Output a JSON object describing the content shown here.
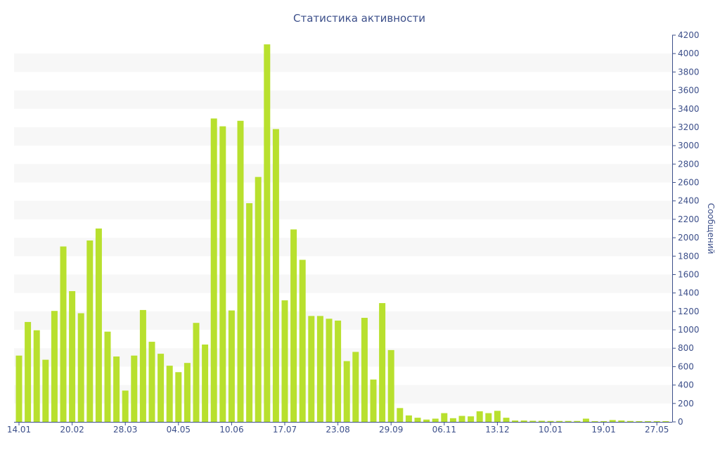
{
  "chart_data": {
    "type": "bar",
    "title": "Статистика активности",
    "xlabel": "",
    "ylabel": "Сообщений",
    "ylim": [
      0,
      4200
    ],
    "y_ticks": [
      0,
      200,
      400,
      600,
      800,
      1000,
      1200,
      1400,
      1600,
      1800,
      2000,
      2200,
      2400,
      2600,
      2800,
      3000,
      3200,
      3400,
      3600,
      3800,
      4000,
      4200
    ],
    "x_tick_labels": [
      {
        "index": 0,
        "label": "14.01"
      },
      {
        "index": 6,
        "label": "20.02"
      },
      {
        "index": 12,
        "label": "28.03"
      },
      {
        "index": 18,
        "label": "04.05"
      },
      {
        "index": 24,
        "label": "10.06"
      },
      {
        "index": 30,
        "label": "17.07"
      },
      {
        "index": 36,
        "label": "23.08"
      },
      {
        "index": 42,
        "label": "29.09"
      },
      {
        "index": 48,
        "label": "06.11"
      },
      {
        "index": 54,
        "label": "13.12"
      },
      {
        "index": 60,
        "label": "10.01"
      },
      {
        "index": 66,
        "label": "19.01"
      },
      {
        "index": 72,
        "label": "27.05"
      }
    ],
    "values": [
      720,
      1085,
      995,
      675,
      1205,
      1905,
      1420,
      1180,
      1970,
      2100,
      980,
      710,
      340,
      720,
      1215,
      870,
      740,
      610,
      540,
      640,
      1075,
      840,
      3295,
      3210,
      1210,
      3270,
      2375,
      2660,
      4100,
      3180,
      1320,
      2090,
      1760,
      1150,
      1150,
      1120,
      1100,
      660,
      760,
      1130,
      460,
      1290,
      780,
      150,
      70,
      45,
      25,
      35,
      95,
      40,
      65,
      60,
      115,
      95,
      120,
      45,
      15,
      15,
      12,
      12,
      10,
      10,
      10,
      10,
      35,
      8,
      8,
      20,
      15,
      10,
      8,
      8,
      8,
      8
    ],
    "bar_color": "#b8e02e",
    "band_color": "#f7f7f7",
    "text_color": "#3c4f8a",
    "grid": true
  }
}
